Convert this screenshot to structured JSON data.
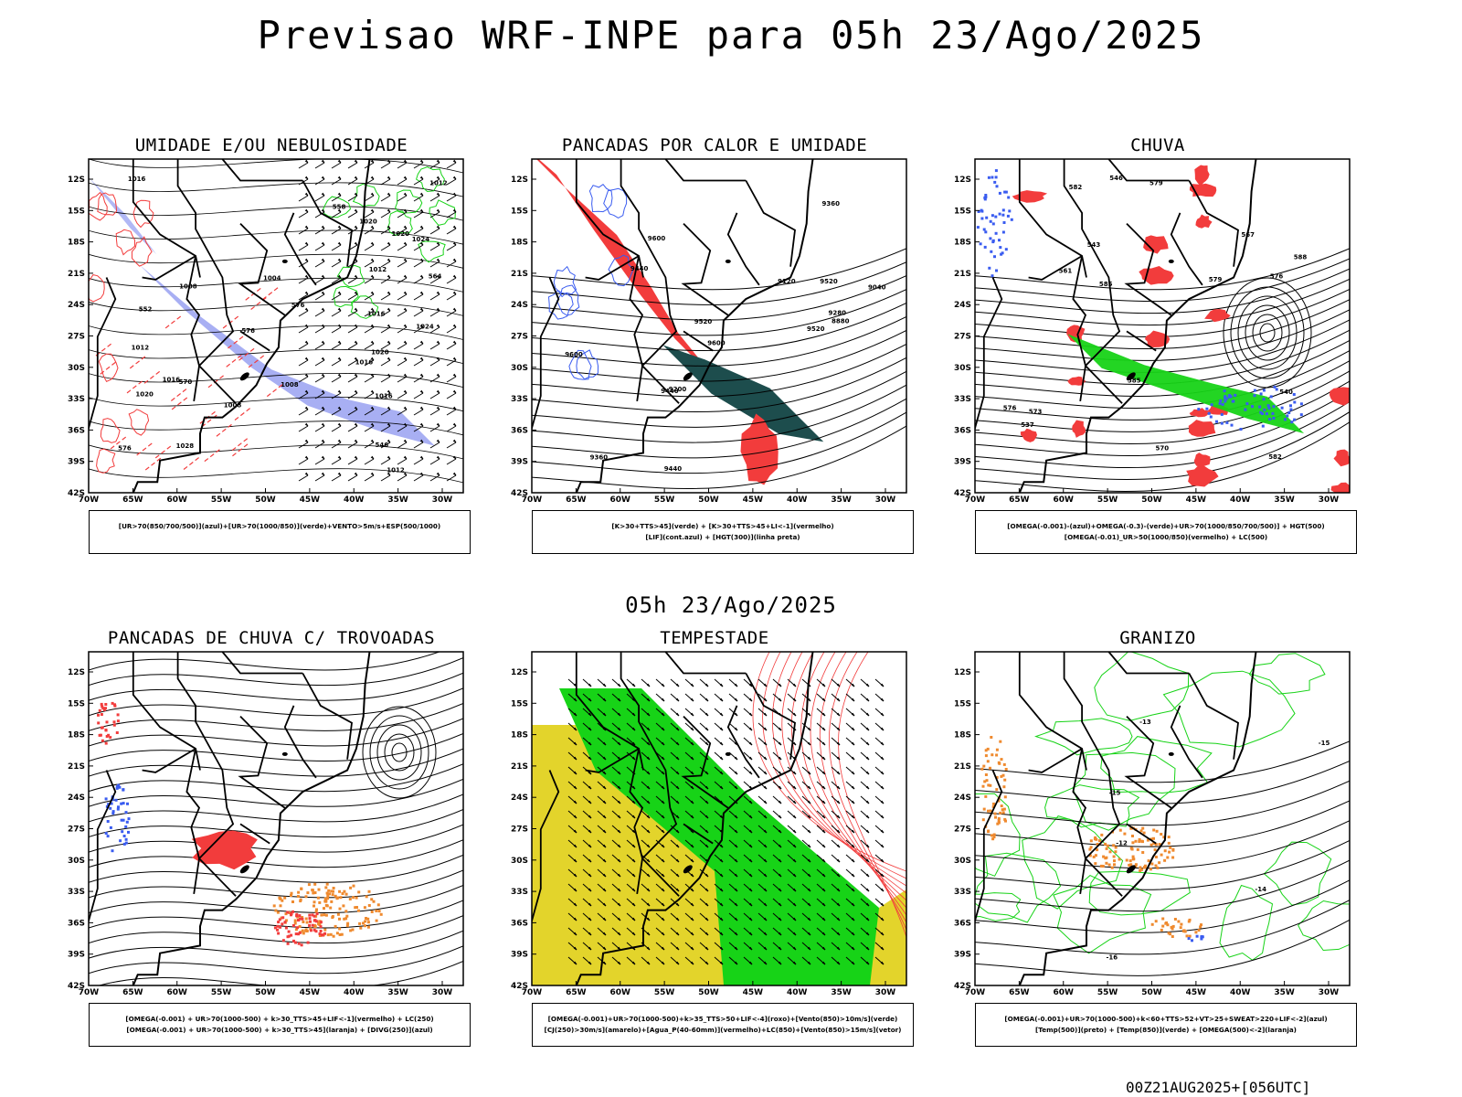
{
  "title": "Previsao WRF-INPE  para 05h 23/Ago/2025",
  "subtitle": "05h 23/Ago/2025",
  "footer": "00Z21AUG2025+[056UTC]",
  "lat_ticks": [
    "12S",
    "15S",
    "18S",
    "21S",
    "24S",
    "27S",
    "30S",
    "33S",
    "36S",
    "39S",
    "42S"
  ],
  "lon_ticks": [
    "70W",
    "65W",
    "60W",
    "55W",
    "50W",
    "45W",
    "40W",
    "35W",
    "30W"
  ],
  "panels": [
    {
      "title": "UMIDADE E/OU NEBULOSIDADE",
      "caption": [
        "[UR>70(850/700/500)](azul)+[UR>70(1000/850)](verde)+VENTO>5m/s+ESP(500/1000)"
      ],
      "contour_labels": [
        "576",
        "576",
        "1012",
        "1020",
        "1016",
        "1020",
        "1016",
        "1008",
        "1012",
        "1024",
        "1016",
        "1020",
        "1004",
        "1008",
        "1012",
        "1016",
        "1020",
        "1024",
        "1028",
        "1008",
        "1012",
        "1016",
        "570",
        "564",
        "558",
        "552",
        "546",
        "576"
      ]
    },
    {
      "title": "PANCADAS POR CALOR E UMIDADE",
      "caption": [
        "[K>30+TTS>45](verde) + [K>30+TTS>45+LI<-1](vermelho)",
        "[LIF](cont.azul) + [HGT(300)](linha preta)"
      ],
      "contour_labels": [
        "9600",
        "9600",
        "9520",
        "9440",
        "9360",
        "9280",
        "9600",
        "9520",
        "9440",
        "9120",
        "9200",
        "9040",
        "8880",
        "9520",
        "9440",
        "9360"
      ]
    },
    {
      "title": "CHUVA",
      "caption": [
        "[OMEGA(-0.001)-(azul)+OMEGA(-0.3)-(verde)+UR>70(1000/850/700/500)] + HGT(500)",
        "[OMEGA(-0.01)_UR>50(1000/850)(vermelho) + LC(500)"
      ],
      "contour_labels": [
        "585",
        "582",
        "579",
        "576",
        "573",
        "570",
        "567",
        "561",
        "585",
        "588",
        "582",
        "579",
        "576",
        "546",
        "543",
        "540",
        "537"
      ]
    },
    {
      "title": "PANCADAS DE CHUVA C/ TROVOADAS",
      "caption": [
        "[OMEGA(-0.001) + UR>70(1000-500) + k>30_TTS>45+LIF<-1](vermelho) + LC(250)",
        "[OMEGA(-0.001) + UR>70(1000-500) + k>30_TTS>45](laranja) + [DIVG(250)](azul)"
      ],
      "contour_labels": []
    },
    {
      "title": "TEMPESTADE",
      "caption": [
        "[OMEGA(-0.001)+UR>70(1000-500)+k>35_TTS>50+LIF<-4](roxo)+[Vento(850)>10m/s](verde)",
        "[CJ(250)>30m/s](amarelo)+[Agua_P(40-60mm)](vermelho)+LC(850)+[Vento(850)>15m/s](vetor)"
      ],
      "contour_labels": []
    },
    {
      "title": "GRANIZO",
      "caption": [
        "[OMEGA(-0.001)+UR>70(1000-500)+k<60+TTS>52+VT>25+SWEAT>220+LIF<-2](azul)",
        "[Temp(500)](preto) + [Temp(850)](verde) + [OMEGA(500)<-2](laranja)"
      ],
      "contour_labels": [
        "-15",
        "-13",
        "-14",
        "-16",
        "-15",
        "-12"
      ]
    }
  ],
  "colors": {
    "red": "#f23c3c",
    "blue": "#3a5cf0",
    "lightblue": "#9ea6f2",
    "green": "#17d317",
    "darkteal": "#1d4d4d",
    "yellow": "#e3d42b",
    "orange": "#ef8a2f",
    "black": "#000000"
  }
}
